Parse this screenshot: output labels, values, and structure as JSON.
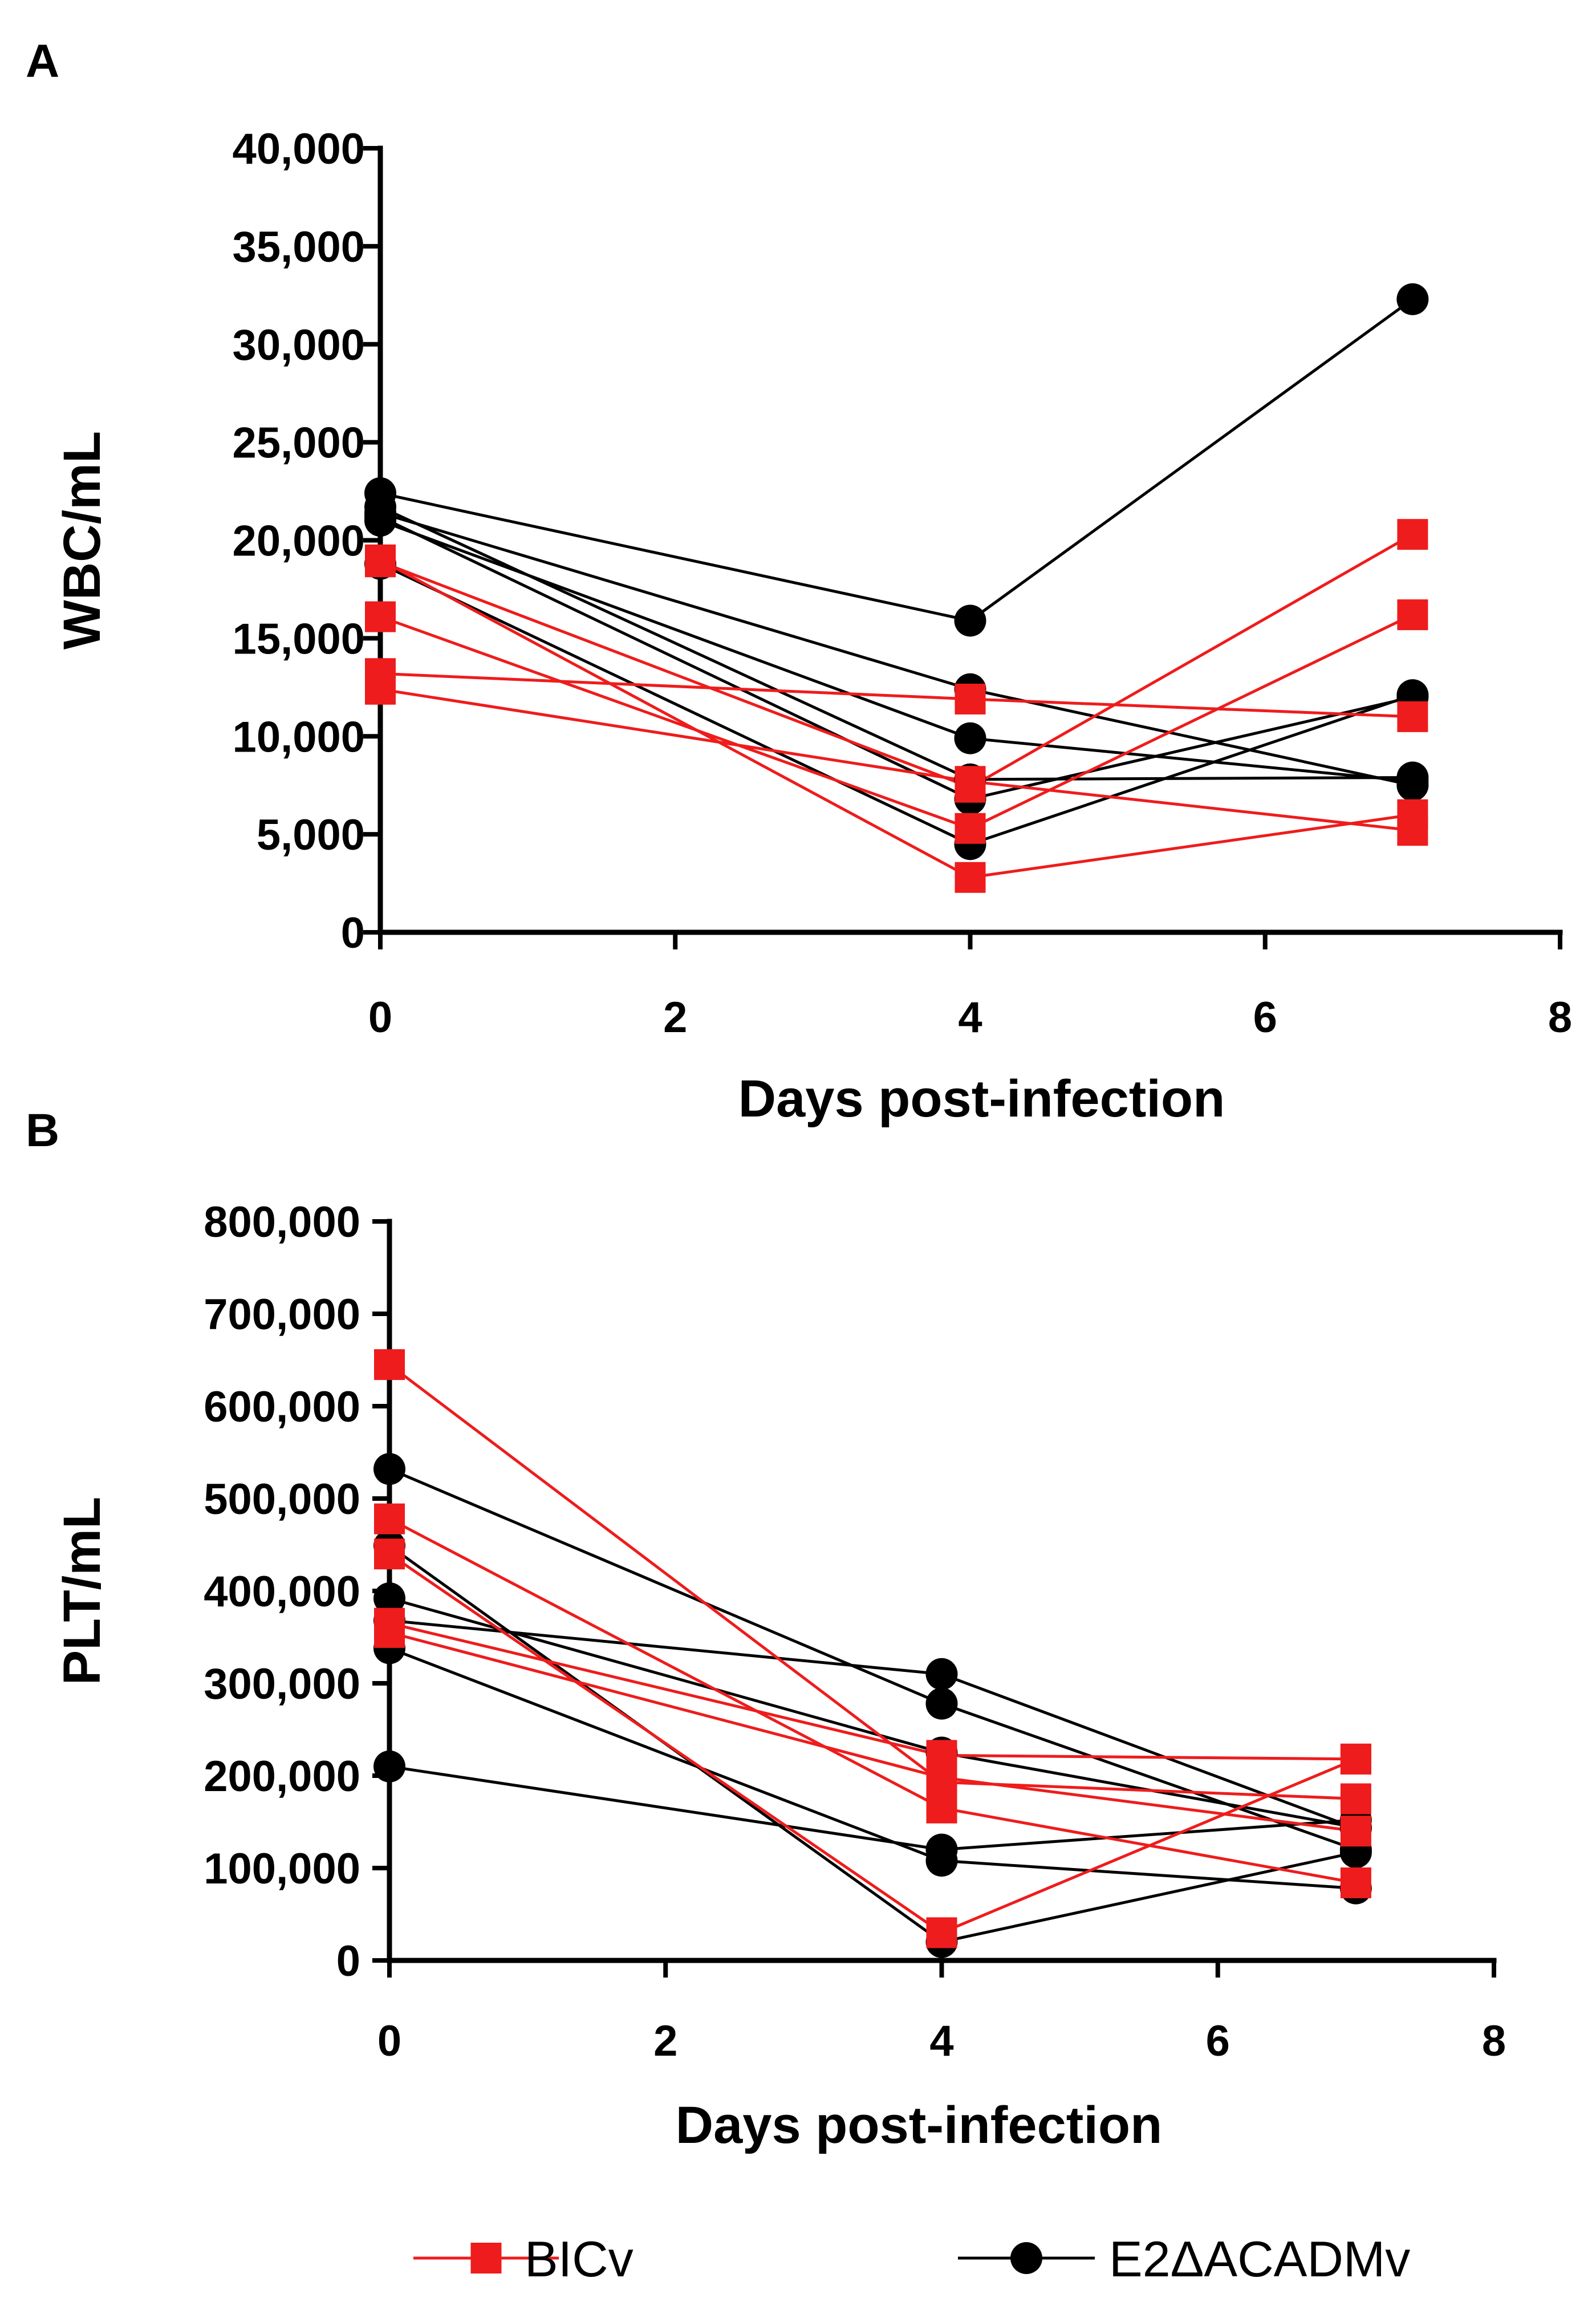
{
  "chart_data": [
    {
      "panel": "A",
      "type": "line",
      "title": "",
      "xlabel": "Days post-infection",
      "ylabel": "WBC/mL",
      "xlim": [
        0,
        8
      ],
      "ylim": [
        0,
        40000
      ],
      "xticks": [
        0,
        2,
        4,
        6,
        8
      ],
      "xtick_labels": [
        "0",
        "2",
        "4",
        "6",
        "8"
      ],
      "yticks": [
        0,
        5000,
        10000,
        15000,
        20000,
        25000,
        30000,
        35000,
        40000
      ],
      "ytick_labels": [
        "0",
        "5,000",
        "10,000",
        "15,000",
        "20,000",
        "25,000",
        "30,000",
        "35,000",
        "40,000"
      ],
      "x": [
        0,
        4,
        7
      ],
      "series": [
        {
          "group": "BICv",
          "values": [
            18900,
            7400,
            20300
          ]
        },
        {
          "group": "BICv",
          "values": [
            16100,
            5300,
            16200
          ]
        },
        {
          "group": "BICv",
          "values": [
            13200,
            11900,
            11000
          ]
        },
        {
          "group": "BICv",
          "values": [
            12400,
            7700,
            5200
          ]
        },
        {
          "group": "BICv",
          "values": [
            19000,
            2800,
            6000
          ]
        },
        {
          "group": "E2ΔACADMv",
          "values": [
            22400,
            15900,
            32300
          ]
        },
        {
          "group": "E2ΔACADMv",
          "values": [
            21400,
            12400,
            7500
          ]
        },
        {
          "group": "E2ΔACADMv",
          "values": [
            21200,
            6800,
            12000
          ]
        },
        {
          "group": "E2ΔACADMv",
          "values": [
            21700,
            7800,
            7900
          ]
        },
        {
          "group": "E2ΔACADMv",
          "values": [
            18800,
            4500,
            12100
          ]
        },
        {
          "group": "E2ΔACADMv",
          "values": [
            21000,
            9900,
            7700
          ]
        }
      ]
    },
    {
      "panel": "B",
      "type": "line",
      "title": "",
      "xlabel": "Days post-infection",
      "ylabel": "PLT/mL",
      "xlim": [
        0,
        8
      ],
      "ylim": [
        0,
        800000
      ],
      "xticks": [
        0,
        2,
        4,
        6,
        8
      ],
      "xtick_labels": [
        "0",
        "2",
        "4",
        "6",
        "8"
      ],
      "yticks": [
        0,
        100000,
        200000,
        300000,
        400000,
        500000,
        600000,
        700000,
        800000
      ],
      "ytick_labels": [
        "0",
        "100,000",
        "200,000",
        "300,000",
        "400,000",
        "500,000",
        "600,000",
        "700,000",
        "800,000"
      ],
      "x": [
        0,
        4,
        7
      ],
      "series": [
        {
          "group": "BICv",
          "values": [
            645000,
            193000,
            175000
          ]
        },
        {
          "group": "BICv",
          "values": [
            478000,
            165000,
            84000
          ]
        },
        {
          "group": "BICv",
          "values": [
            440000,
            30000,
            218000
          ]
        },
        {
          "group": "BICv",
          "values": [
            365000,
            222000,
            218000
          ]
        },
        {
          "group": "BICv",
          "values": [
            355000,
            198000,
            140000
          ]
        },
        {
          "group": "E2ΔACADMv",
          "values": [
            532000,
            278000,
            120000
          ]
        },
        {
          "group": "E2ΔACADMv",
          "values": [
            449000,
            20000,
            117000
          ]
        },
        {
          "group": "E2ΔACADMv",
          "values": [
            392000,
            225000,
            144000
          ]
        },
        {
          "group": "E2ΔACADMv",
          "values": [
            368000,
            310000,
            143000
          ]
        },
        {
          "group": "E2ΔACADMv",
          "values": [
            338000,
            108000,
            78000
          ]
        },
        {
          "group": "E2ΔACADMv",
          "values": [
            210000,
            120000,
            152000
          ]
        }
      ]
    }
  ],
  "legend": [
    {
      "label": "BICv",
      "color": "#ee1c1c",
      "marker": "square"
    },
    {
      "label": "E2ΔACADMv",
      "color": "#000000",
      "marker": "circle"
    }
  ]
}
